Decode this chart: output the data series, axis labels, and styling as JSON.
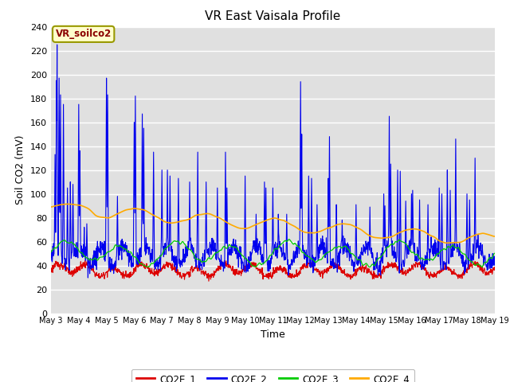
{
  "title": "VR East Vaisala Profile",
  "xlabel": "Time",
  "ylabel": "Soil CO2 (mV)",
  "ylim": [
    0,
    240
  ],
  "yticks": [
    0,
    20,
    40,
    60,
    80,
    100,
    120,
    140,
    160,
    180,
    200,
    220,
    240
  ],
  "legend_label": "VR_soilco2",
  "series_labels": [
    "CO2E_1",
    "CO2E_2",
    "CO2E_3",
    "CO2E_4"
  ],
  "series_colors": [
    "#dd0000",
    "#0000ee",
    "#00cc00",
    "#ffaa00"
  ],
  "bg_color": "#e0e0e0",
  "n_days": 16,
  "start_day": 3,
  "points_per_day": 96,
  "figsize": [
    6.4,
    4.8
  ],
  "dpi": 100
}
